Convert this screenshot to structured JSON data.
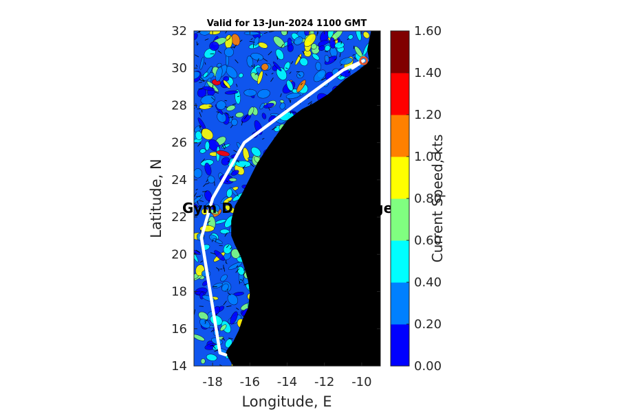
{
  "title": "Valid for 13-Jun-2024 1100 GMT",
  "overlay_text": "Gym D                        ssage",
  "axes": {
    "xlabel": "Longitude, E",
    "ylabel": "Latitude, N",
    "xlim": [
      -19.0,
      -9.0
    ],
    "ylim": [
      14,
      32
    ],
    "xticks": [
      -18,
      -16,
      -14,
      -12,
      -10
    ],
    "yticks": [
      14,
      16,
      18,
      20,
      22,
      24,
      26,
      28,
      30,
      32
    ]
  },
  "colorbar": {
    "label": "Current Speed, kts",
    "ticks": [
      "0.00",
      "0.20",
      "0.40",
      "0.60",
      "0.80",
      "1.00",
      "1.20",
      "1.40",
      "1.60"
    ],
    "colors": [
      "#0000ff",
      "#0080ff",
      "#00ffff",
      "#80ff80",
      "#ffff00",
      "#ff8000",
      "#ff0000",
      "#800000"
    ]
  },
  "colors": {
    "land": "#000000",
    "route": "#ffffff",
    "route_end_marker": "#e0562e",
    "ocean_base": "#0f55ee"
  },
  "route": [
    [
      -17.3,
      14.6
    ],
    [
      -17.6,
      14.7
    ],
    [
      -18.6,
      20.9
    ],
    [
      -18.0,
      23.0
    ],
    [
      -16.3,
      26.0
    ],
    [
      -14.0,
      27.7
    ],
    [
      -11.0,
      29.9
    ],
    [
      -9.9,
      30.4
    ],
    [
      -10.5,
      30.0
    ]
  ],
  "coast": [
    [
      -9.5,
      32.0
    ],
    [
      -9.7,
      31.0
    ],
    [
      -9.6,
      30.4
    ],
    [
      -9.9,
      30.1
    ],
    [
      -10.3,
      29.8
    ],
    [
      -10.9,
      29.4
    ],
    [
      -11.8,
      28.6
    ],
    [
      -12.6,
      28.1
    ],
    [
      -13.2,
      27.8
    ],
    [
      -14.0,
      27.2
    ],
    [
      -14.5,
      26.5
    ],
    [
      -15.0,
      25.8
    ],
    [
      -15.6,
      24.9
    ],
    [
      -16.0,
      24.1
    ],
    [
      -16.4,
      23.3
    ],
    [
      -16.8,
      22.6
    ],
    [
      -17.0,
      21.8
    ],
    [
      -17.0,
      21.0
    ],
    [
      -16.8,
      20.5
    ],
    [
      -16.5,
      19.9
    ],
    [
      -16.3,
      19.3
    ],
    [
      -16.1,
      18.6
    ],
    [
      -16.0,
      17.9
    ],
    [
      -16.1,
      17.1
    ],
    [
      -16.4,
      16.5
    ],
    [
      -16.6,
      15.9
    ],
    [
      -16.9,
      15.3
    ],
    [
      -17.2,
      14.9
    ],
    [
      -17.3,
      14.7
    ],
    [
      -16.9,
      14.0
    ]
  ]
}
